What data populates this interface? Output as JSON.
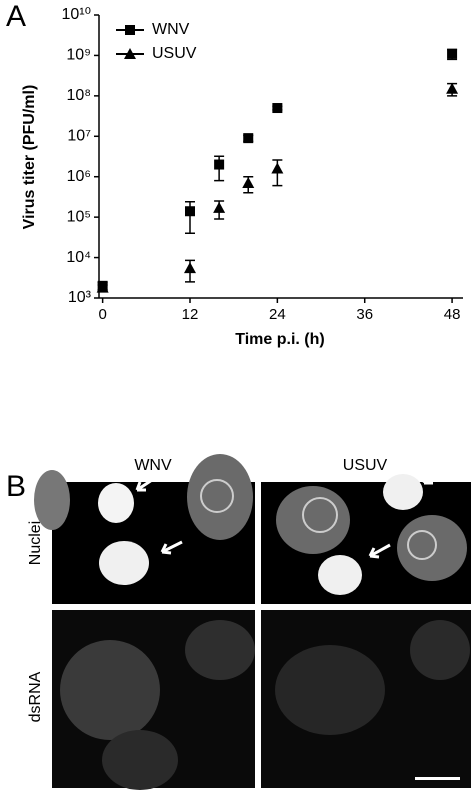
{
  "chart_data": {
    "type": "line",
    "panel_label": "A",
    "xlabel": "Time p.i. (h)",
    "ylabel": "Virus titer (PFU/ml)",
    "x": [
      0,
      12,
      16,
      20,
      24,
      48
    ],
    "series": [
      {
        "name": "WNV",
        "color": "#000000",
        "marker": "square",
        "values": [
          2000,
          140000,
          2000000,
          9000000,
          50000000,
          1100000000
        ],
        "errors": [
          400,
          100000,
          1200000,
          1500000,
          5000000,
          300000000
        ]
      },
      {
        "name": "USUV",
        "color": "#000000",
        "marker": "triangle",
        "values": [
          1800,
          5500,
          170000,
          700000,
          1600000,
          150000000
        ],
        "errors": [
          300,
          3000,
          80000,
          300000,
          1000000,
          50000000
        ]
      }
    ],
    "xlim": [
      -0.5,
      49.5
    ],
    "xticks": [
      0,
      12,
      24,
      36,
      48
    ],
    "ylim": [
      1000,
      10000000000
    ],
    "yscale": "log",
    "yticks": [
      {
        "value": 1000,
        "label": "10³"
      },
      {
        "value": 10000,
        "label": "10⁴"
      },
      {
        "value": 100000,
        "label": "10⁵"
      },
      {
        "value": 1000000,
        "label": "10⁶"
      },
      {
        "value": 10000000,
        "label": "10⁷"
      },
      {
        "value": 100000000,
        "label": "10⁸"
      },
      {
        "value": 1000000000,
        "label": "10⁹"
      },
      {
        "value": 10000000000,
        "label": "10¹⁰"
      }
    ],
    "legend": "upper left"
  },
  "panel_b": {
    "panel_label": "B",
    "columns": [
      "WNV",
      "USUV"
    ],
    "rows": [
      "Nuclei",
      "dsRNA"
    ]
  }
}
